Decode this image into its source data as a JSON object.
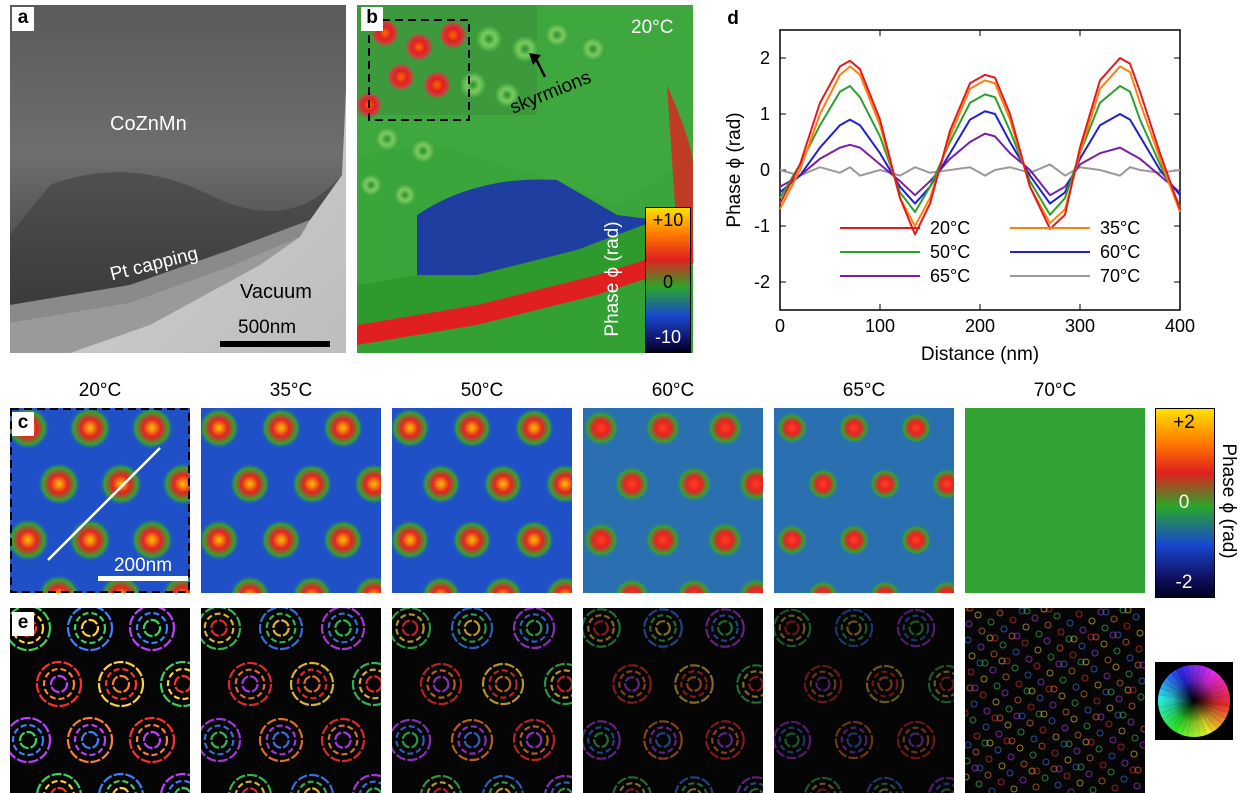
{
  "panels": {
    "a": {
      "label": "a",
      "material": "CoZnMn",
      "capping": "Pt capping",
      "vacuum": "Vacuum",
      "scalebar": "500nm"
    },
    "b": {
      "label": "b",
      "temperature": "20°C",
      "annotation": "skyrmions",
      "colorbar_title": "Phase ϕ (rad)",
      "colorbar_ticks": [
        "+10",
        "0",
        "-10"
      ]
    },
    "c": {
      "label": "c",
      "scalebar": "200nm",
      "colorbar_title": "Phase ϕ (rad)",
      "colorbar_ticks": [
        "+2",
        "0",
        "-2"
      ]
    },
    "e": {
      "label": "e"
    },
    "d": {
      "label": "d"
    }
  },
  "temperatures": [
    "20°C",
    "35°C",
    "50°C",
    "60°C",
    "65°C",
    "70°C"
  ],
  "chart_data": {
    "type": "line",
    "xlabel": "Distance (nm)",
    "ylabel": "Phase ϕ (rad)",
    "xlim": [
      0,
      400
    ],
    "ylim": [
      -2.5,
      2.5
    ],
    "xticks": [
      "0",
      "100",
      "200",
      "300",
      "400"
    ],
    "yticks": [
      "-2",
      "-1",
      "0",
      "1",
      "2"
    ],
    "legend_position": "bottom-center",
    "x": [
      0,
      20,
      40,
      60,
      70,
      80,
      100,
      120,
      135,
      150,
      170,
      190,
      205,
      215,
      230,
      250,
      270,
      285,
      300,
      320,
      340,
      350,
      360,
      380,
      400
    ],
    "series": [
      {
        "name": "20°C",
        "color": "#e41a1c",
        "values": [
          -0.6,
          0.1,
          1.2,
          1.85,
          1.95,
          1.8,
          0.9,
          -0.5,
          -1.15,
          -0.6,
          0.7,
          1.55,
          1.7,
          1.65,
          1.0,
          -0.3,
          -1.05,
          -0.8,
          0.4,
          1.6,
          2.0,
          1.9,
          1.4,
          0.3,
          -0.7
        ]
      },
      {
        "name": "35°C",
        "color": "#ff7f0e",
        "values": [
          -0.7,
          0.0,
          1.0,
          1.7,
          1.85,
          1.7,
          0.8,
          -0.5,
          -1.0,
          -0.5,
          0.6,
          1.45,
          1.6,
          1.55,
          0.9,
          -0.3,
          -0.95,
          -0.7,
          0.3,
          1.45,
          1.85,
          1.75,
          1.2,
          0.2,
          -0.75
        ]
      },
      {
        "name": "50°C",
        "color": "#2ca02c",
        "values": [
          -0.5,
          0.1,
          0.8,
          1.4,
          1.5,
          1.3,
          0.6,
          -0.4,
          -0.75,
          -0.3,
          0.5,
          1.2,
          1.35,
          1.3,
          0.7,
          -0.2,
          -0.8,
          -0.5,
          0.3,
          1.2,
          1.5,
          1.4,
          0.9,
          0.1,
          -0.65
        ]
      },
      {
        "name": "60°C",
        "color": "#1f1fd6",
        "values": [
          -0.4,
          -0.1,
          0.4,
          0.8,
          0.9,
          0.8,
          0.3,
          -0.3,
          -0.6,
          -0.3,
          0.3,
          0.9,
          1.05,
          1.0,
          0.5,
          -0.1,
          -0.6,
          -0.4,
          0.2,
          0.8,
          1.0,
          0.9,
          0.6,
          0.0,
          -0.45
        ]
      },
      {
        "name": "65°C",
        "color": "#7b1fa2",
        "values": [
          -0.3,
          -0.1,
          0.2,
          0.4,
          0.45,
          0.4,
          0.1,
          -0.2,
          -0.45,
          -0.2,
          0.2,
          0.5,
          0.65,
          0.6,
          0.3,
          0.0,
          -0.45,
          -0.3,
          0.1,
          0.3,
          0.4,
          0.3,
          0.2,
          -0.1,
          -0.4
        ]
      },
      {
        "name": "70°C",
        "color": "#999999",
        "values": [
          0.0,
          -0.1,
          0.05,
          -0.05,
          0.05,
          -0.1,
          0.0,
          -0.1,
          0.05,
          -0.05,
          0.0,
          0.05,
          -0.1,
          0.0,
          0.05,
          -0.05,
          0.1,
          -0.1,
          0.05,
          0.0,
          -0.1,
          0.05,
          0.0,
          -0.05,
          0.0
        ]
      }
    ]
  }
}
